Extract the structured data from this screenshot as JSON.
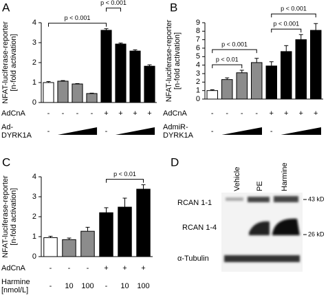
{
  "chart_data": [
    {
      "type": "bar",
      "panel": "A",
      "ylabel": [
        "NFAT-luciferase-reporter",
        "[n-fold activation]"
      ],
      "values": [
        1.0,
        1.07,
        0.93,
        0.45,
        3.62,
        2.93,
        2.58,
        1.82
      ],
      "errors": [
        0.05,
        0.03,
        0.02,
        0.02,
        0.08,
        0.05,
        0.06,
        0.07
      ],
      "colors": [
        "#ffffff",
        "#8c8c8c",
        "#8c8c8c",
        "#8c8c8c",
        "#000000",
        "#000000",
        "#000000",
        "#000000"
      ],
      "ylim": [
        0,
        4
      ],
      "yticks": [
        0,
        1,
        2,
        3,
        4
      ],
      "annotations": [
        {
          "label": "p < 0.001",
          "from": 0,
          "to": 4
        },
        {
          "label": "p < 0.001",
          "from": 4,
          "to": 5
        }
      ],
      "conditions": [
        {
          "label": [
            "AdCnA"
          ],
          "values": [
            "-",
            "-",
            "-",
            "-",
            "+",
            "+",
            "+",
            "+"
          ]
        },
        {
          "label": [
            "Ad-",
            "DYRK1A"
          ],
          "values": [
            "-",
            null,
            null,
            null,
            "-",
            null,
            null,
            null
          ]
        }
      ]
    },
    {
      "type": "bar",
      "panel": "B",
      "ylabel": [
        "NFAT-luciferase-reporter",
        "[n-fold activation]"
      ],
      "values": [
        1.0,
        2.3,
        3.1,
        4.3,
        3.9,
        5.6,
        7.0,
        8.1
      ],
      "errors": [
        0.1,
        0.2,
        0.3,
        0.5,
        0.5,
        0.7,
        0.6,
        0.8
      ],
      "colors": [
        "#ffffff",
        "#8c8c8c",
        "#8c8c8c",
        "#8c8c8c",
        "#000000",
        "#000000",
        "#000000",
        "#000000"
      ],
      "ylim": [
        0,
        9
      ],
      "yticks": [
        0,
        1,
        2,
        3,
        4,
        5,
        6,
        7,
        8,
        9
      ],
      "annotations": [
        {
          "label": "p < 0.01",
          "from": 0,
          "to": 2
        },
        {
          "label": "p < 0.001",
          "from": 0,
          "to": 3
        },
        {
          "label": "p < 0.001",
          "from": 4,
          "to": 6
        },
        {
          "label": "p < 0.001",
          "from": 4,
          "to": 7
        }
      ],
      "conditions": [
        {
          "label": [
            "AdCnA"
          ],
          "values": [
            "-",
            "-",
            "-",
            "-",
            "+",
            "+",
            "+",
            "+"
          ]
        },
        {
          "label": [
            "AdmiR-",
            "DYRK1A"
          ],
          "values": [
            "-",
            null,
            null,
            null,
            "-",
            null,
            null,
            null
          ]
        }
      ]
    },
    {
      "type": "bar",
      "panel": "C",
      "ylabel": [
        "NFAT-luciferase-reporter",
        "[n-fold activation]"
      ],
      "values": [
        0.95,
        0.85,
        1.27,
        2.2,
        2.48,
        3.38
      ],
      "errors": [
        0.07,
        0.08,
        0.2,
        0.25,
        0.45,
        0.22
      ],
      "colors": [
        "#ffffff",
        "#8c8c8c",
        "#8c8c8c",
        "#000000",
        "#000000",
        "#000000"
      ],
      "ylim": [
        0,
        4
      ],
      "yticks": [
        0,
        1,
        2,
        3,
        4
      ],
      "annotations": [
        {
          "label": "p < 0.01",
          "from": 3,
          "to": 5
        }
      ],
      "conditions": [
        {
          "label": [
            "AdCnA"
          ],
          "values": [
            "-",
            "-",
            "-",
            "+",
            "+",
            "+"
          ]
        },
        {
          "label": [
            "Harmine",
            "[nmol/L]"
          ],
          "values": [
            "-",
            "10",
            "100",
            "-",
            "10",
            "100"
          ]
        }
      ]
    }
  ],
  "panel_d": {
    "panel": "D",
    "lanes": [
      "Vehicle",
      "PE",
      "Harmine"
    ],
    "rows": [
      "RCAN 1-1",
      "RCAN 1-4",
      "α-Tubulin"
    ],
    "markers": [
      "43 kD",
      "26 kD"
    ]
  }
}
